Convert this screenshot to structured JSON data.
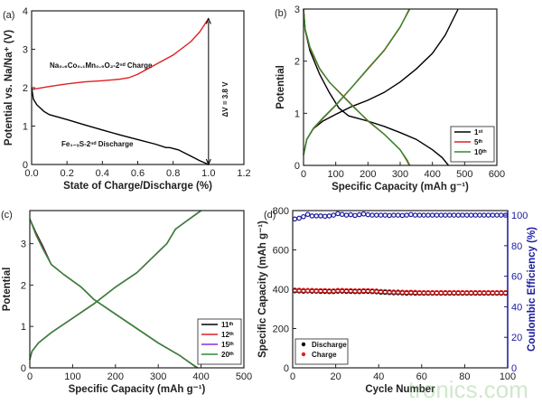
{
  "watermark": "tronics.com",
  "chart_data": [
    {
      "panel": "(a)",
      "type": "line",
      "xlabel": "State of Charge/Discharge (%)",
      "ylabel": "Potential vs. Na/Na⁺ (V)",
      "xlim": [
        0,
        1.2
      ],
      "ylim": [
        0,
        4
      ],
      "xticks": [
        "0.0",
        "0.2",
        "0.4",
        "0.6",
        "0.8",
        "1.0",
        "1.2"
      ],
      "yticks": [
        "0",
        "1",
        "2",
        "3",
        "4"
      ],
      "series": [
        {
          "name": "Na₀.₆Co₀.₁Mn₀.₉O₂-2ⁿᵈ Charge",
          "color": "#e02020",
          "x": [
            0,
            0.1,
            0.2,
            0.3,
            0.4,
            0.5,
            0.55,
            0.6,
            0.7,
            0.8,
            0.9,
            0.95,
            1.0
          ],
          "y": [
            1.95,
            2.03,
            2.1,
            2.15,
            2.18,
            2.22,
            2.26,
            2.35,
            2.6,
            2.85,
            3.2,
            3.45,
            3.8
          ]
        },
        {
          "name": "Fe₁₋ₓS-2ⁿᵈ Discharge",
          "color": "#000000",
          "x": [
            0,
            0.01,
            0.03,
            0.07,
            0.1,
            0.2,
            0.3,
            0.4,
            0.5,
            0.6,
            0.7,
            0.76,
            0.78,
            0.83,
            0.9,
            0.95,
            1.0
          ],
          "y": [
            2.0,
            1.7,
            1.55,
            1.38,
            1.3,
            1.17,
            1.03,
            0.9,
            0.77,
            0.65,
            0.53,
            0.44,
            0.44,
            0.38,
            0.22,
            0.1,
            0.0
          ]
        }
      ],
      "annotations": {
        "delta_v": "ΔV = 3.8 V",
        "arrow_x": 1.0,
        "arrow_y": [
          0,
          3.8
        ]
      }
    },
    {
      "panel": "(b)",
      "type": "line",
      "xlabel": "Specific Capacity (mAh g⁻¹)",
      "ylabel": "Potential",
      "xlim": [
        0,
        600
      ],
      "ylim": [
        0,
        3
      ],
      "xticks": [
        "0",
        "100",
        "200",
        "300",
        "400",
        "500",
        "600"
      ],
      "yticks": [
        "0",
        "1",
        "2",
        "3"
      ],
      "legend": {
        "position": "bottom-right",
        "entries": [
          {
            "label": "1ˢᵗ",
            "color": "#000000"
          },
          {
            "label": "5ᵗʰ",
            "color": "#e02020"
          },
          {
            "label": "10ᵗʰ",
            "color": "#2e8b2e"
          }
        ]
      },
      "series": [
        {
          "name": "1ˢᵗ",
          "color": "#000000",
          "discharge": {
            "x": [
              0,
              5,
              20,
              50,
              80,
              110,
              140,
              170,
              200,
              250,
              300,
              350,
              400,
              430,
              450
            ],
            "y": [
              3,
              2.6,
              2.2,
              1.75,
              1.4,
              1.1,
              0.95,
              0.9,
              0.85,
              0.75,
              0.63,
              0.5,
              0.3,
              0.15,
              0
            ]
          },
          "charge": {
            "x": [
              0,
              10,
              30,
              60,
              100,
              150,
              200,
              250,
              300,
              350,
              400,
              440,
              480
            ],
            "y": [
              0.2,
              0.5,
              0.7,
              0.85,
              0.98,
              1.13,
              1.25,
              1.4,
              1.6,
              1.85,
              2.15,
              2.5,
              3
            ]
          }
        },
        {
          "name": "5ᵗʰ",
          "color": "#e02020",
          "discharge": {
            "x": [
              0,
              5,
              20,
              50,
              80,
              120,
              160,
              200,
              250,
              300,
              320,
              328
            ],
            "y": [
              3,
              2.6,
              2.25,
              1.85,
              1.6,
              1.35,
              1.1,
              0.85,
              0.6,
              0.3,
              0.1,
              0
            ]
          },
          "charge": {
            "x": [
              0,
              10,
              30,
              60,
              100,
              150,
              200,
              250,
              300,
              328
            ],
            "y": [
              0.2,
              0.5,
              0.7,
              0.9,
              1.15,
              1.5,
              1.85,
              2.2,
              2.65,
              3
            ]
          }
        },
        {
          "name": "10ᵗʰ",
          "color": "#2e8b2e",
          "discharge": {
            "x": [
              0,
              5,
              20,
              50,
              80,
              120,
              160,
              200,
              250,
              300,
              322,
              330
            ],
            "y": [
              3,
              2.62,
              2.27,
              1.86,
              1.6,
              1.34,
              1.09,
              0.86,
              0.6,
              0.3,
              0.1,
              0
            ]
          },
          "charge": {
            "x": [
              0,
              10,
              30,
              60,
              100,
              150,
              200,
              250,
              300,
              330
            ],
            "y": [
              0.2,
              0.5,
              0.71,
              0.91,
              1.16,
              1.5,
              1.86,
              2.21,
              2.66,
              3
            ]
          }
        }
      ]
    },
    {
      "panel": "(c)",
      "type": "line",
      "xlabel": "Specific Capacity (mAh g⁻¹)",
      "ylabel": "Potential",
      "xlim": [
        0,
        500
      ],
      "ylim": [
        0,
        3.8
      ],
      "xticks": [
        "0",
        "100",
        "200",
        "300",
        "400",
        "500"
      ],
      "yticks": [
        "0",
        "1",
        "2",
        "3"
      ],
      "legend": {
        "position": "bottom-right",
        "entries": [
          {
            "label": "11ᵗʰ",
            "color": "#000000"
          },
          {
            "label": "12ᵗʰ",
            "color": "#e02020"
          },
          {
            "label": "15ᵗʰ",
            "color": "#8a2be2"
          },
          {
            "label": "20ᵗʰ",
            "color": "#2e8b2e"
          }
        ]
      },
      "series": [
        {
          "name": "11ᵗʰ",
          "color": "#000000",
          "discharge": {
            "x": [
              0,
              15,
              30,
              50,
              80,
              120,
              150,
              200,
              250,
              300,
              350,
              370,
              392
            ],
            "y": [
              3.6,
              3.25,
              2.95,
              2.5,
              2.25,
              1.95,
              1.65,
              1.3,
              0.95,
              0.6,
              0.3,
              0.15,
              0
            ]
          },
          "charge": {
            "x": [
              0,
              5,
              20,
              50,
              100,
              150,
              200,
              250,
              300,
              320,
              340,
              360,
              400
            ],
            "y": [
              0.2,
              0.4,
              0.6,
              0.85,
              1.2,
              1.55,
              1.95,
              2.3,
              2.8,
              3.0,
              3.35,
              3.5,
              3.8
            ]
          }
        },
        {
          "name": "12ᵗʰ",
          "color": "#e02020",
          "discharge": {
            "x": [
              0,
              15,
              30,
              50,
              80,
              120,
              150,
              200,
              250,
              300,
              350,
              370,
              391
            ],
            "y": [
              3.6,
              3.22,
              2.92,
              2.5,
              2.25,
              1.95,
              1.65,
              1.3,
              0.95,
              0.6,
              0.3,
              0.15,
              0
            ]
          },
          "charge": {
            "x": [
              0,
              5,
              20,
              50,
              100,
              150,
              200,
              250,
              300,
              320,
              340,
              360,
              400
            ],
            "y": [
              0.2,
              0.4,
              0.6,
              0.85,
              1.2,
              1.55,
              1.95,
              2.3,
              2.8,
              3.0,
              3.35,
              3.5,
              3.8
            ]
          }
        },
        {
          "name": "15ᵗʰ",
          "color": "#8a2be2",
          "discharge": {
            "x": [
              0,
              15,
              30,
              50,
              80,
              120,
              150,
              200,
              250,
              300,
              350,
              370,
              390
            ],
            "y": [
              3.6,
              3.2,
              2.9,
              2.5,
              2.25,
              1.95,
              1.65,
              1.3,
              0.95,
              0.6,
              0.3,
              0.15,
              0
            ]
          },
          "charge": {
            "x": [
              0,
              5,
              20,
              50,
              100,
              150,
              200,
              250,
              300,
              320,
              340,
              360,
              400
            ],
            "y": [
              0.2,
              0.4,
              0.6,
              0.85,
              1.2,
              1.55,
              1.95,
              2.3,
              2.8,
              3.0,
              3.35,
              3.5,
              3.8
            ]
          }
        },
        {
          "name": "20ᵗʰ",
          "color": "#2e8b2e",
          "discharge": {
            "x": [
              0,
              15,
              30,
              50,
              80,
              120,
              150,
              200,
              250,
              300,
              350,
              370,
              390
            ],
            "y": [
              3.6,
              3.2,
              2.88,
              2.5,
              2.25,
              1.95,
              1.65,
              1.3,
              0.95,
              0.6,
              0.3,
              0.15,
              0
            ]
          },
          "charge": {
            "x": [
              0,
              5,
              20,
              50,
              100,
              150,
              200,
              250,
              300,
              320,
              340,
              360,
              400
            ],
            "y": [
              0.2,
              0.4,
              0.6,
              0.85,
              1.2,
              1.55,
              1.95,
              2.3,
              2.8,
              3.0,
              3.35,
              3.5,
              3.8
            ]
          }
        }
      ]
    },
    {
      "panel": "(d)",
      "type": "scatter",
      "xlabel": "Cycle Number",
      "ylabel": "Specific Capacity (mAh g⁻¹)",
      "y2label": "Coulombic Efficiency (%)",
      "y2color": "#1a1aa0",
      "xlim": [
        0,
        100
      ],
      "ylim": [
        0,
        800
      ],
      "y2lim": [
        0,
        103
      ],
      "xticks": [
        "0",
        "20",
        "40",
        "60",
        "80",
        "100"
      ],
      "yticks": [
        "0",
        "200",
        "400",
        "600",
        "800"
      ],
      "y2ticks": [
        "0",
        "20",
        "40",
        "60",
        "80",
        "100"
      ],
      "legend": {
        "position": "bottom-left",
        "entries": [
          {
            "label": "Discharge",
            "color": "#000000"
          },
          {
            "label": "Charge",
            "color": "#e02020"
          }
        ]
      },
      "x": [
        1,
        3,
        5,
        7,
        9,
        11,
        13,
        15,
        17,
        19,
        21,
        23,
        25,
        27,
        29,
        31,
        33,
        35,
        37,
        39,
        41,
        43,
        45,
        47,
        49,
        51,
        53,
        55,
        57,
        59,
        61,
        63,
        65,
        67,
        69,
        71,
        73,
        75,
        77,
        79,
        81,
        83,
        85,
        87,
        89,
        91,
        93,
        95,
        97,
        99
      ],
      "series": [
        {
          "name": "Discharge",
          "color": "#000000",
          "axis": "left",
          "values": [
            392,
            391,
            390,
            391,
            390,
            390,
            389,
            389,
            388,
            388,
            390,
            390,
            389,
            389,
            388,
            388,
            389,
            389,
            388,
            387,
            385,
            384,
            383,
            382,
            382,
            381,
            380,
            381,
            380,
            380,
            380,
            380,
            380,
            380,
            380,
            380,
            380,
            380,
            380,
            380,
            380,
            380,
            380,
            380,
            380,
            380,
            380,
            380,
            380,
            380
          ]
        },
        {
          "name": "Charge",
          "color": "#e02020",
          "axis": "left",
          "values": [
            396,
            395,
            394,
            394,
            394,
            393,
            393,
            393,
            392,
            392,
            394,
            394,
            393,
            393,
            392,
            392,
            393,
            393,
            392,
            391,
            389,
            388,
            387,
            386,
            386,
            385,
            384,
            385,
            384,
            383,
            383,
            383,
            383,
            383,
            383,
            383,
            383,
            383,
            383,
            383,
            383,
            383,
            383,
            383,
            383,
            383,
            383,
            383,
            383,
            383
          ]
        },
        {
          "name": "Coulombic Efficiency",
          "color": "#1a1aa0",
          "axis": "right",
          "values": [
            97.5,
            98,
            99,
            100.5,
            99.5,
            99.5,
            99.5,
            99.3,
            99.5,
            100,
            101,
            100.5,
            100,
            100.3,
            99.8,
            100.3,
            100.8,
            100.3,
            100,
            100,
            100,
            100,
            99.8,
            100,
            100,
            99.8,
            100,
            100.4,
            100,
            100,
            100,
            100,
            100,
            100,
            100,
            100,
            100,
            100,
            100,
            100,
            100,
            100,
            100,
            100,
            100,
            100,
            100,
            100,
            100,
            100
          ]
        }
      ]
    }
  ]
}
